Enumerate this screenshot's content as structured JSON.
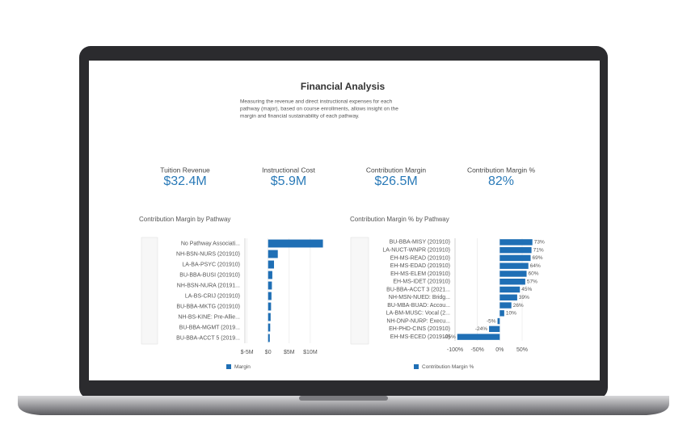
{
  "header": {
    "title": "Financial Analysis",
    "description": [
      "Measuring the revenue and direct instructional expenses for each",
      "pathway (major), based on course enrollments, allows insight on the",
      "margin and financial sustainability of each pathway."
    ]
  },
  "kpis": [
    {
      "label": "Tuition Revenue",
      "value": "$32.4M"
    },
    {
      "label": "Instructional Cost",
      "value": "$5.9M"
    },
    {
      "label": "Contribution Margin",
      "value": "$26.5M"
    },
    {
      "label": "Contribution Margin %",
      "value": "82%"
    }
  ],
  "chart_data": [
    {
      "type": "hbar",
      "title": "Contribution Margin by Pathway",
      "categories": [
        "No Pathway Associati...",
        "NH-BSN-NURS (201910)",
        "LA-BA-PSYC (201910)",
        "BU-BBA-BUSI (201910)",
        "NH-BSN-NURA (20191...",
        "LA-BS-CRIJ (201910)",
        "BU-BBA-MKTG (201910)",
        "NH-BS-KINE: Pre-Allie...",
        "BU-BBA-MGMT (2019...",
        "BU-BBA-ACCT 5 (2019..."
      ],
      "series": [
        {
          "name": "Margin",
          "color": "#1f6fb5",
          "values": [
            13000000,
            2300000,
            1400000,
            1000000,
            900000,
            800000,
            700000,
            600000,
            500000,
            400000
          ]
        }
      ],
      "xlim": [
        -5500000,
        15000000
      ],
      "xticks": [
        {
          "value": -5000000,
          "label": "$-5M"
        },
        {
          "value": 0,
          "label": "$0"
        },
        {
          "value": 5000000,
          "label": "$5M"
        },
        {
          "value": 10000000,
          "label": "$10M"
        }
      ],
      "grid": true
    },
    {
      "type": "hbar",
      "title": "Contribution Margin % by Pathway",
      "categories": [
        "BU-BBA-MISY (201910)",
        "LA-NUCT-WNPR (201910)",
        "EH-MS-READ (201910)",
        "EH-MS-EDAD (201910)",
        "EH-MS-ELEM (201910)",
        "EH-MS-IDET (201910)",
        "BU-BBA-ACCT 3 (2021...",
        "NH-MSN-NUED: Bridg...",
        "BU-MBA-BUAD: Accou...",
        "LA-BM-MUSC: Vocal (2...",
        "NH-DNP-NURP: Execu...",
        "EH-PHD-CINS (201910)",
        "EH-MS-ECED (201910)"
      ],
      "series": [
        {
          "name": "Contribution Margin %",
          "color": "#1f6fb5",
          "values": [
            73,
            71,
            69,
            64,
            60,
            57,
            45,
            39,
            26,
            10,
            -5,
            -24,
            -95
          ],
          "value_labels": [
            "73%",
            "71%",
            "69%",
            "64%",
            "60%",
            "57%",
            "45%",
            "39%",
            "26%",
            "10%",
            "-5%",
            "-24%",
            "-95%"
          ]
        }
      ],
      "xlim": [
        -100,
        97
      ],
      "xticks": [
        {
          "value": -100,
          "label": "-100%"
        },
        {
          "value": -50,
          "label": "-50%"
        },
        {
          "value": 0,
          "label": "0%"
        },
        {
          "value": 50,
          "label": "50%"
        }
      ],
      "grid": true
    }
  ]
}
